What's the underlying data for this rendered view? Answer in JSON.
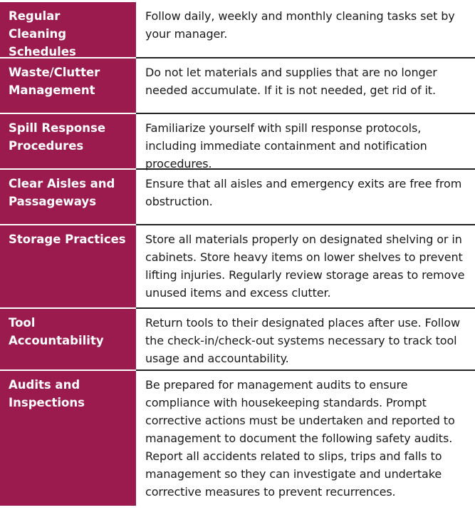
{
  "rows": [
    {
      "term": "Regular Cleaning Schedules",
      "description": "Follow daily, weekly and monthly cleaning tasks set by your manager."
    },
    {
      "term": "Waste/Clutter Management",
      "description": "Do not let materials and supplies that are no longer needed accumulate. If it is not needed, get rid of it."
    },
    {
      "term": "Spill Response Procedures",
      "description": "Familiarize yourself with spill response protocols, including immediate containment and notification procedures."
    },
    {
      "term": "Clear Aisles and Passageways",
      "description": "Ensure that all aisles and emergency exits are free from obstruction."
    },
    {
      "term": "Storage Practices",
      "description": "Store all materials properly on designated shelving or in cabinets. Store heavy items on lower shelves to prevent lifting injuries. Regularly review storage areas to remove unused items and excess clutter."
    },
    {
      "term": "Tool Accountability",
      "description": "Return tools to their designated places after use. Follow the check-in/check-out systems necessary to track tool usage and accountability."
    },
    {
      "term": "Audits and Inspections",
      "description": "Be prepared for management audits to ensure compliance with housekeeping standards. Prompt corrective actions must be undertaken and reported to management to document the following safety audits. Report all accidents related to slips, trips and falls to management so they can investigate and undertake corrective measures to prevent recurrences."
    }
  ],
  "colors": {
    "term_background": "#9b1b4e",
    "term_text": "#ffffff",
    "description_text": "#1a1a1a"
  }
}
